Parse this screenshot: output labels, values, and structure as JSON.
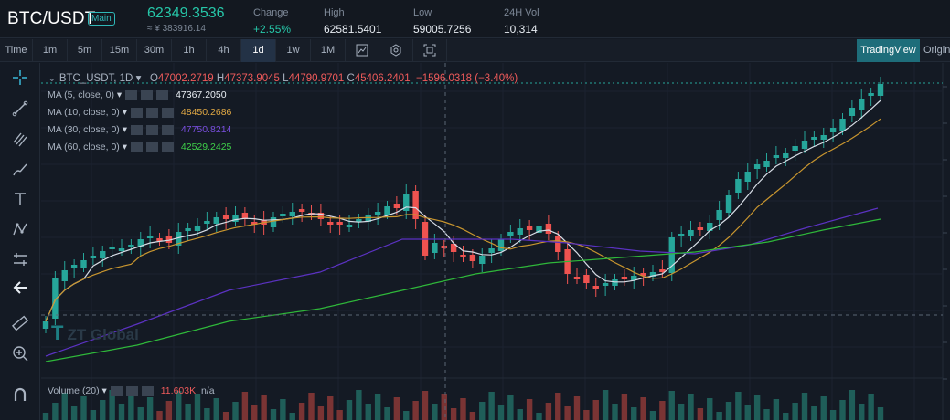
{
  "header": {
    "pair": "BTC/USDT",
    "badge": "Main",
    "price": "62349.3536",
    "price_sub": "≈ ¥ 383916.14",
    "change_label": "Change",
    "change_value": "+2.55%",
    "high_label": "High",
    "high_value": "62581.5401",
    "low_label": "Low",
    "low_value": "59005.7256",
    "vol_label": "24H Vol",
    "vol_value": "10,314"
  },
  "toolbar": {
    "time_label": "Time",
    "intervals": [
      "1m",
      "5m",
      "15m",
      "30m",
      "1h",
      "4h",
      "1d",
      "1w",
      "1M"
    ],
    "active_interval": "1d",
    "tradingview_label": "TradingView",
    "original_label": "Original"
  },
  "chart": {
    "symbol": "BTC_USDT, 1D",
    "ohlc": {
      "o_label": "O",
      "o": "47002.2719",
      "h_label": "H",
      "h": "47373.9045",
      "l_label": "L",
      "l": "44790.9701",
      "c_label": "C",
      "c": "45406.2401",
      "change": "−1596.0318 (−3.40%)"
    },
    "indicators": [
      {
        "label": "MA (5, close, 0)",
        "value": "47367.2050",
        "color": "#e8edf3"
      },
      {
        "label": "MA (10, close, 0)",
        "value": "48450.2686",
        "color": "#e0a844"
      },
      {
        "label": "MA (30, close, 0)",
        "value": "47750.8214",
        "color": "#6c3fd0"
      },
      {
        "label": "MA (60, close, 0)",
        "value": "42529.2425",
        "color": "#3fd04a"
      }
    ],
    "volume": {
      "label": "Volume (20)",
      "value": "11.603K",
      "extra": "n/a"
    },
    "watermark": "ZT Global",
    "colors": {
      "up": "#26a69a",
      "down": "#ef5350"
    }
  },
  "tools": [
    "crosshair-icon",
    "trendline-icon",
    "fib-icon",
    "brush-icon",
    "text-icon",
    "pattern-icon",
    "measure-icon",
    "back-arrow-icon",
    "ruler-icon",
    "zoom-in-icon",
    "magnet-icon"
  ]
}
